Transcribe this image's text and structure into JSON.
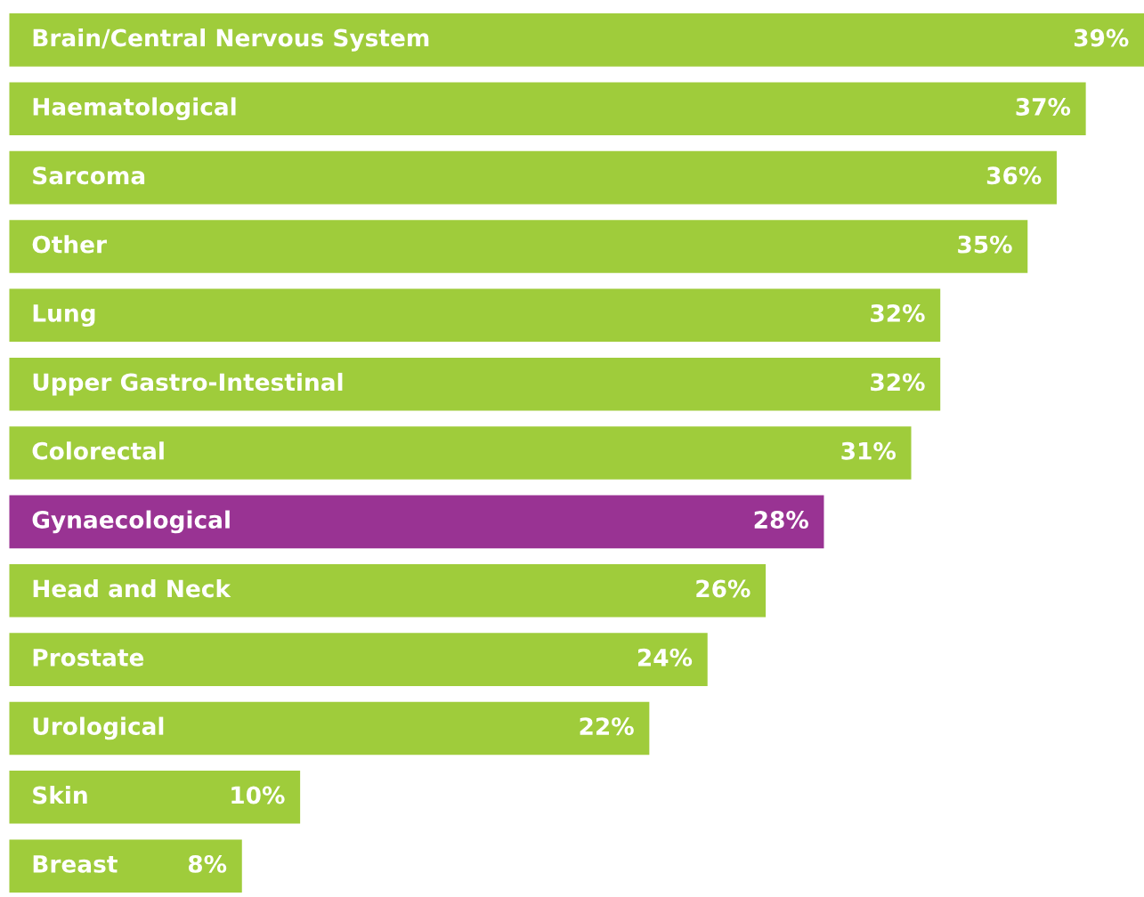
{
  "chart_data": {
    "type": "bar",
    "orientation": "horizontal",
    "categories": [
      "Brain/Central Nervous System",
      "Haematological",
      "Sarcoma",
      "Other",
      "Lung",
      "Upper Gastro-Intestinal",
      "Colorectal",
      "Gynaecological",
      "Head and Neck",
      "Prostate",
      "Urological",
      "Skin",
      "Breast"
    ],
    "values": [
      39,
      37,
      36,
      35,
      32,
      32,
      31,
      28,
      26,
      24,
      22,
      10,
      8
    ],
    "colors": [
      "#9fcc3b",
      "#9fcc3b",
      "#9fcc3b",
      "#9fcc3b",
      "#9fcc3b",
      "#9fcc3b",
      "#9fcc3b",
      "#993393",
      "#9fcc3b",
      "#9fcc3b",
      "#9fcc3b",
      "#9fcc3b",
      "#9fcc3b"
    ],
    "value_labels": [
      "39%",
      "37%",
      "36%",
      "35%",
      "32%",
      "32%",
      "31%",
      "28%",
      "26%",
      "24%",
      "22%",
      "10%",
      "8%"
    ]
  }
}
